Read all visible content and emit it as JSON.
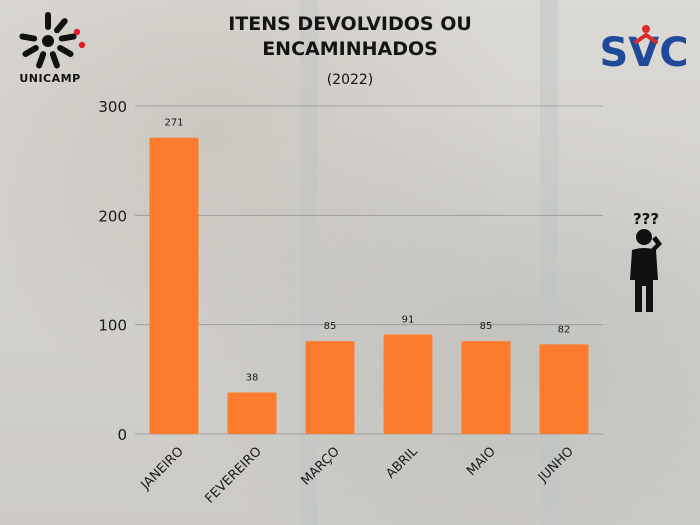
{
  "header": {
    "title_line1": "ITENS DEVOLVIDOS OU",
    "title_line2": "ENCAMINHADOS",
    "subtitle": "(2022)"
  },
  "logos": {
    "left_label": "UNICAMP",
    "left_icon": "unicamp-logo-icon",
    "right_text": "SVC",
    "right_icon": "svc-logo-icon"
  },
  "decoration": {
    "person_icon": "confused-person-icon",
    "question_marks": "???"
  },
  "colors": {
    "bar": "#fd7b2c",
    "svc_blue": "#1f4a9a",
    "svc_red": "#d92b2b",
    "unicamp_red": "#e11d2a"
  },
  "chart_data": {
    "type": "bar",
    "title": "ITENS DEVOLVIDOS OU ENCAMINHADOS",
    "subtitle": "(2022)",
    "xlabel": "",
    "ylabel": "",
    "categories": [
      "JANEIRO",
      "FEVEREIRO",
      "MARÇO",
      "ABRIL",
      "MAIO",
      "JUNHO"
    ],
    "values": [
      271,
      38,
      85,
      91,
      85,
      82
    ],
    "data_labels": [
      "271",
      "38",
      "85",
      "91",
      "85",
      "82"
    ],
    "yticks": [
      0,
      100,
      200,
      300
    ],
    "ylim": [
      0,
      300
    ],
    "grid": true,
    "legend": "none"
  }
}
